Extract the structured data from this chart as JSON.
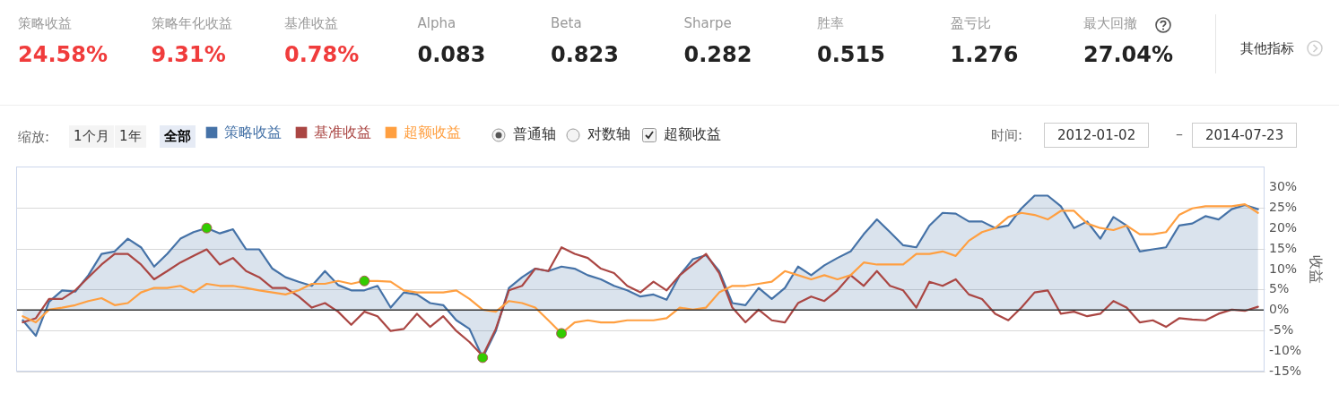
{
  "chart_data": [
    {
      "type": "other",
      "annotations": [
        "策略收益",
        "24.58%",
        "策略年化收益",
        "9.31%",
        "基准收益",
        "0.78%",
        "Alpha",
        "0.083",
        "Beta",
        "0.823",
        "Sharpe",
        "0.282",
        "胜率",
        "0.515",
        "盈亏比",
        "1.276",
        "最大回撤",
        "27.04%",
        "其他指标"
      ]
    },
    {
      "type": "line",
      "ylabel": "收益",
      "annotations": [
        "缩放:",
        "1个月",
        "1年",
        "全部",
        "普通轴",
        "对数轴",
        "超额收益",
        "时间:",
        "2012-01-02",
        "–",
        "2014-07-23"
      ],
      "categories": [
        null,
        null,
        null,
        null,
        null,
        null,
        null,
        null,
        null,
        null,
        null,
        null,
        null,
        null,
        null,
        null,
        null,
        null,
        null,
        null,
        null,
        null,
        null,
        null,
        null,
        null,
        null,
        null,
        null,
        null,
        null,
        null,
        null,
        null,
        null,
        null,
        null,
        null,
        null,
        null,
        null,
        null,
        null,
        null,
        null,
        null,
        null,
        null,
        null,
        null,
        null,
        null,
        null,
        null,
        null,
        null,
        null,
        null,
        null,
        null,
        null,
        null,
        null,
        null,
        null,
        null,
        null,
        null,
        null,
        null,
        null,
        null,
        null,
        null,
        null,
        null,
        null,
        null,
        null,
        null,
        null,
        null,
        null,
        null,
        null,
        null,
        null,
        null,
        null,
        null,
        null,
        null,
        null,
        null,
        null
      ],
      "series": [
        {
          "name": "策略收益",
          "type": "area",
          "color": "#4572a7",
          "values": [
            -2.5,
            -6.3,
            2.0,
            4.8,
            4.5,
            8.5,
            13.7,
            14.3,
            17.4,
            15.3,
            10.6,
            13.7,
            17.4,
            19.0,
            20.0,
            18.7,
            19.7,
            14.8,
            14.8,
            10.1,
            8.0,
            6.9,
            5.9,
            9.5,
            6.1,
            4.8,
            4.8,
            5.9,
            0.6,
            4.3,
            3.8,
            1.7,
            1.2,
            -2.5,
            -4.6,
            -11.6,
            -5.1,
            5.4,
            8.0,
            10.1,
            9.5,
            10.6,
            10.1,
            8.5,
            7.5,
            5.9,
            4.8,
            3.3,
            3.8,
            2.5,
            8.5,
            12.4,
            13.4,
            9.5,
            1.7,
            1.2,
            5.4,
            2.7,
            5.4,
            10.6,
            8.5,
            10.9,
            12.7,
            14.3,
            18.5,
            22.1,
            19.0,
            15.8,
            15.3,
            20.6,
            23.7,
            23.5,
            21.6,
            21.6,
            20.0,
            20.6,
            24.8,
            27.9,
            27.9,
            25.3,
            20.0,
            21.6,
            17.4,
            22.7,
            20.6,
            14.3,
            14.8,
            15.3,
            20.6,
            21.1,
            22.9,
            22.1,
            24.6,
            25.6,
            24.6
          ]
        },
        {
          "name": "基准收益",
          "color": "#aa4643",
          "values": [
            -3.0,
            -2.0,
            2.7,
            2.7,
            4.8,
            8.0,
            11.1,
            13.7,
            13.7,
            11.1,
            7.5,
            9.5,
            11.6,
            13.2,
            14.8,
            11.1,
            12.7,
            9.5,
            8.0,
            5.4,
            5.4,
            3.3,
            0.6,
            1.7,
            -0.4,
            -3.6,
            -0.4,
            -1.5,
            -5.1,
            -4.6,
            -0.9,
            -4.1,
            -1.5,
            -5.1,
            -7.8,
            -11.2,
            -4.6,
            4.8,
            5.9,
            10.1,
            9.5,
            15.3,
            13.7,
            12.7,
            10.1,
            9.0,
            5.9,
            4.3,
            6.9,
            4.8,
            8.5,
            11.1,
            13.7,
            9.0,
            0.6,
            -3.0,
            0.1,
            -2.5,
            -3.0,
            1.7,
            3.3,
            2.2,
            4.8,
            8.5,
            5.9,
            9.5,
            5.9,
            4.8,
            0.6,
            6.9,
            5.9,
            7.5,
            3.8,
            2.7,
            -0.9,
            -2.5,
            0.6,
            4.3,
            4.8,
            -0.9,
            -0.4,
            -1.5,
            -0.9,
            2.2,
            0.6,
            -3.0,
            -2.5,
            -4.1,
            -2.0,
            -2.3,
            -2.5,
            -0.9,
            0.1,
            -0.2,
            0.8
          ]
        },
        {
          "name": "超额收益",
          "color": "#ff9f40",
          "values": [
            -1.5,
            -3.0,
            0.1,
            0.6,
            1.2,
            2.2,
            2.9,
            1.2,
            1.7,
            4.3,
            5.4,
            5.4,
            5.9,
            4.3,
            6.4,
            5.9,
            5.9,
            5.4,
            4.8,
            4.3,
            3.8,
            4.8,
            6.4,
            6.4,
            7.1,
            6.4,
            7.1,
            7.1,
            6.9,
            4.8,
            4.3,
            4.3,
            4.3,
            4.8,
            2.7,
            0.1,
            -0.4,
            2.2,
            1.7,
            0.6,
            -2.5,
            -5.7,
            -3.0,
            -2.5,
            -3.0,
            -3.0,
            -2.5,
            -2.5,
            -2.5,
            -2.0,
            0.6,
            0.1,
            0.6,
            4.3,
            5.9,
            5.9,
            6.4,
            6.9,
            9.5,
            8.5,
            7.5,
            8.5,
            7.5,
            8.5,
            11.6,
            11.1,
            11.1,
            11.1,
            13.7,
            13.7,
            14.3,
            13.2,
            16.9,
            19.0,
            20.0,
            22.7,
            23.7,
            23.2,
            22.1,
            24.2,
            24.2,
            21.1,
            20.0,
            19.5,
            20.6,
            18.5,
            18.5,
            19.0,
            23.2,
            24.8,
            25.3,
            25.3,
            25.3,
            25.8,
            23.7
          ]
        },
        {
          "type": "scatter",
          "color": "#33cc00",
          "marker": "circle",
          "values": [
            null,
            null,
            null,
            null,
            null,
            null,
            null,
            null,
            null,
            null,
            null,
            null,
            null,
            null,
            20.0,
            null,
            null,
            null,
            null,
            null,
            null,
            null,
            null,
            null,
            null,
            null,
            7.1,
            null,
            null,
            null,
            null,
            null,
            null,
            null,
            null,
            -11.6,
            null,
            null,
            null,
            null,
            null,
            -5.7,
            null,
            null,
            null,
            null,
            null,
            null,
            null,
            null,
            null,
            null,
            null,
            null,
            null,
            null,
            null,
            null,
            null,
            null,
            null,
            null,
            null,
            null,
            null,
            null,
            null,
            null,
            null,
            null,
            null,
            null,
            null,
            null,
            null,
            null,
            null,
            null,
            null,
            null,
            null,
            null,
            null,
            null,
            null,
            null,
            null,
            null,
            null,
            null,
            null,
            null,
            null,
            null,
            null
          ]
        }
      ],
      "ylim": [
        -15,
        35
      ],
      "yticks": [
        {
          "value": -15,
          "label": "-15%"
        },
        {
          "value": -10,
          "label": "-10%"
        },
        {
          "value": -5,
          "label": "-5%"
        },
        {
          "value": 0,
          "label": "0%"
        },
        {
          "value": 5,
          "label": "5%"
        },
        {
          "value": 10,
          "label": "10%"
        },
        {
          "value": 15,
          "label": "15%"
        },
        {
          "value": 20,
          "label": "20%"
        },
        {
          "value": 25,
          "label": "25%"
        },
        {
          "value": 30,
          "label": "30%"
        }
      ],
      "ref_lines": [
        {
          "axis": "y",
          "value": 0,
          "color": "#333333"
        }
      ],
      "grid": "y",
      "legend": "top left",
      "tick_labels": "y",
      "marker": "none",
      "line_style": "solid"
    }
  ]
}
